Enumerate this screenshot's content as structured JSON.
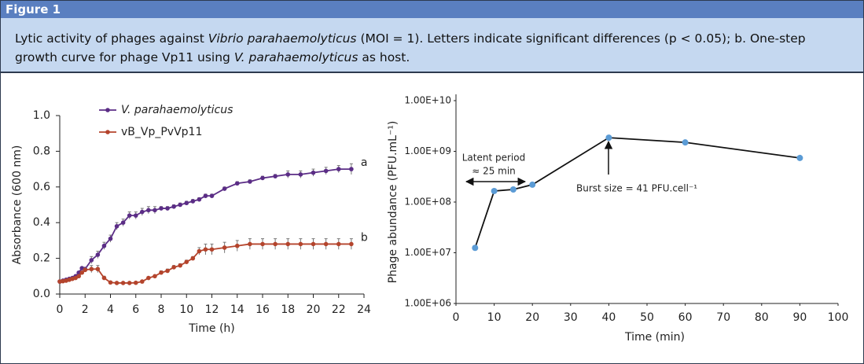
{
  "figure_label": "Figure 1",
  "caption": [
    "Lytic activity of phages against ",
    "Vibrio parahaemolyticus",
    " (MOI = 1). Letters indicate significant differences (p < 0.05); b. One-step growth curve for phage Vp11 using ",
    "V. parahaemolyticus",
    " as host."
  ],
  "chart_data": [
    {
      "type": "line",
      "xlabel": "Time (h)",
      "ylabel": "Absorbance (600 nm)",
      "x": [
        0,
        0.25,
        0.5,
        0.75,
        1,
        1.25,
        1.5,
        1.75,
        2,
        2.5,
        3,
        3.5,
        4,
        4.5,
        5,
        5.5,
        6,
        6.5,
        7,
        7.5,
        8,
        8.5,
        9,
        9.5,
        10,
        10.5,
        11,
        11.5,
        12,
        13,
        14,
        15,
        16,
        17,
        18,
        19,
        20,
        21,
        22,
        23
      ],
      "xlim": [
        0,
        24
      ],
      "xticks": [
        0,
        2,
        4,
        6,
        8,
        10,
        12,
        14,
        16,
        18,
        20,
        22,
        24
      ],
      "ylim": [
        0,
        1
      ],
      "yticks": [
        {
          "value": 0,
          "label": "0.0"
        },
        0.2,
        0.4,
        0.6,
        0.8,
        {
          "value": 1,
          "label": "1.0"
        }
      ],
      "legend": "upper left",
      "series": [
        {
          "name": "V. parahaemolyticus",
          "color": "#5b2d86",
          "annotation": "a",
          "values": [
            0.07,
            0.075,
            0.08,
            0.085,
            0.09,
            0.1,
            0.12,
            0.145,
            0.14,
            0.19,
            0.22,
            0.27,
            0.31,
            0.38,
            0.4,
            0.44,
            0.44,
            0.46,
            0.47,
            0.47,
            0.48,
            0.48,
            0.49,
            0.5,
            0.51,
            0.52,
            0.53,
            0.55,
            0.55,
            0.59,
            0.62,
            0.63,
            0.65,
            0.66,
            0.67,
            0.67,
            0.68,
            0.69,
            0.7,
            0.7
          ],
          "errors": [
            0.005,
            0.005,
            0.005,
            0.005,
            0.005,
            0.005,
            0.005,
            0.005,
            0.01,
            0.02,
            0.02,
            0.02,
            0.02,
            0.02,
            0.02,
            0.02,
            0.02,
            0.02,
            0.02,
            0.02,
            0.01,
            0.01,
            0.01,
            0.01,
            0.01,
            0.01,
            0.01,
            0.01,
            0.01,
            0.01,
            0.01,
            0.01,
            0.01,
            0.01,
            0.02,
            0.02,
            0.02,
            0.02,
            0.02,
            0.03
          ]
        },
        {
          "name": "vB_Vp_PvVp11",
          "color": "#b4442c",
          "annotation": "b",
          "values": [
            0.07,
            0.072,
            0.075,
            0.08,
            0.085,
            0.09,
            0.1,
            0.12,
            0.135,
            0.14,
            0.14,
            0.09,
            0.065,
            0.062,
            0.062,
            0.062,
            0.063,
            0.07,
            0.09,
            0.1,
            0.12,
            0.13,
            0.15,
            0.16,
            0.18,
            0.2,
            0.24,
            0.25,
            0.25,
            0.26,
            0.27,
            0.28,
            0.28,
            0.28,
            0.28,
            0.28,
            0.28,
            0.28,
            0.28,
            0.28
          ],
          "errors": [
            0.005,
            0.005,
            0.005,
            0.005,
            0.005,
            0.005,
            0.005,
            0.005,
            0.01,
            0.02,
            0.02,
            0.01,
            0.005,
            0.005,
            0.005,
            0.005,
            0.005,
            0.005,
            0.005,
            0.005,
            0.01,
            0.01,
            0.01,
            0.01,
            0.01,
            0.01,
            0.02,
            0.03,
            0.03,
            0.03,
            0.03,
            0.03,
            0.03,
            0.03,
            0.03,
            0.03,
            0.03,
            0.03,
            0.03,
            0.03
          ]
        }
      ]
    },
    {
      "type": "scatter-line",
      "xlabel": "Time (min)",
      "ylabel": "Phage abundance (PFU.mL⁻¹)",
      "x": [
        5,
        10,
        15,
        20,
        40,
        60,
        90
      ],
      "values": [
        12500000,
        165000000,
        177000000,
        220000000,
        1860000000,
        1500000000,
        740000000
      ],
      "color": "#5b9bd5",
      "line_color": "#111111",
      "log_y": true,
      "xlim": [
        0,
        100
      ],
      "xticks": [
        0,
        10,
        20,
        30,
        40,
        50,
        60,
        70,
        80,
        90,
        100
      ],
      "ylim": [
        1000000,
        10000000000
      ],
      "yticks": [
        {
          "value": 1000000,
          "label": "1.00E+06"
        },
        {
          "value": 10000000,
          "label": "1.00E+07"
        },
        {
          "value": 100000000,
          "label": "1.00E+08"
        },
        {
          "value": 1000000000,
          "label": "1.00E+09"
        },
        {
          "value": 10000000000,
          "label": "1.00E+10"
        }
      ],
      "annotations": [
        "Latent period",
        "≈ 25 min",
        "Burst size = 41 PFU.cell⁻¹"
      ]
    }
  ]
}
